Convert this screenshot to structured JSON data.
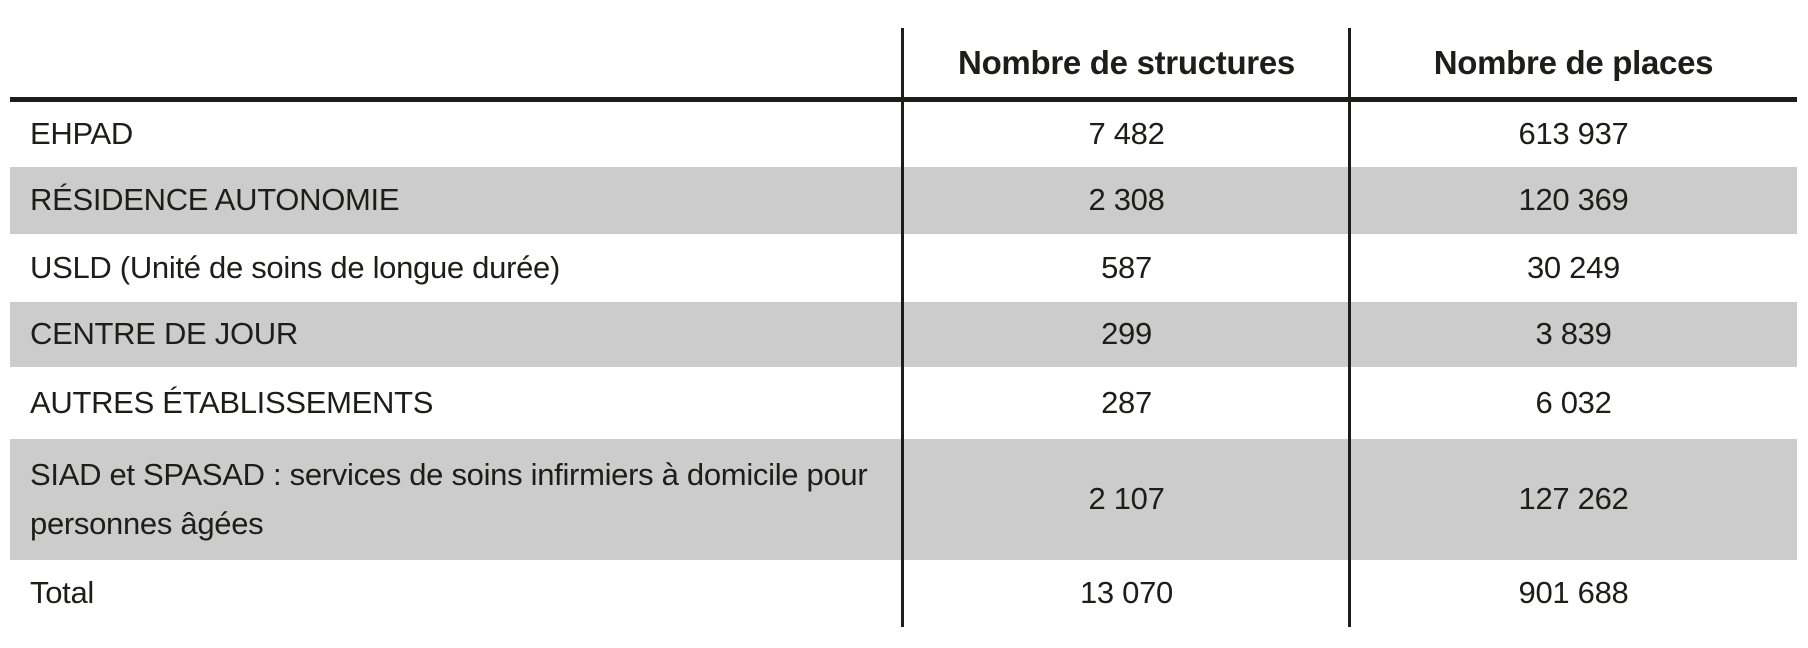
{
  "table": {
    "header": {
      "col_label": "",
      "col_structures": "Nombre de structures",
      "col_places": "Nombre de places"
    },
    "rows": [
      {
        "label": "EHPAD",
        "structures": "7 482",
        "places": "613 937",
        "shaded": false
      },
      {
        "label": "RÉSIDENCE AUTONOMIE",
        "structures": "2 308",
        "places": "120 369",
        "shaded": true
      },
      {
        "label": "USLD (Unité de soins de longue durée)",
        "structures": "587",
        "places": "30 249",
        "shaded": false
      },
      {
        "label": "CENTRE DE JOUR",
        "structures": "299",
        "places": "3 839",
        "shaded": true
      },
      {
        "label": "AUTRES ÉTABLISSEMENTS",
        "structures": "287",
        "places": "6 032",
        "shaded": false
      },
      {
        "label": "SIAD et SPASAD : services de soins infirmiers à domicile pour personnes âgées",
        "structures": "2 107",
        "places": "127 262",
        "shaded": true
      },
      {
        "label": "Total",
        "structures": "13 070",
        "places": "901 688",
        "shaded": false
      }
    ],
    "colors": {
      "row_band": "#cccccc",
      "text": "#1d1d1b",
      "rule": "#1d1d1b"
    }
  }
}
